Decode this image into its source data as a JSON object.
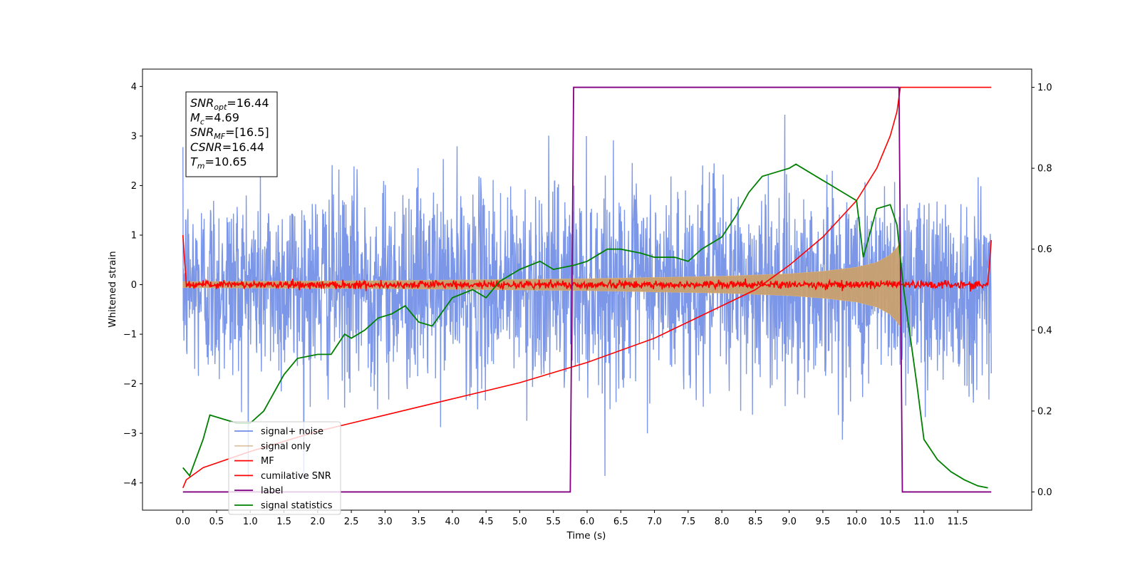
{
  "chart_data": {
    "type": "line",
    "xlabel": "Time (s)",
    "ylabel": "Whitened strain",
    "xlim": [
      -0.6,
      12.6
    ],
    "ylim": [
      -4.55,
      4.35
    ],
    "y2lim": [
      -0.045,
      1.045
    ],
    "x_ticks": [
      0.0,
      0.5,
      1.0,
      1.5,
      2.0,
      2.5,
      3.0,
      3.5,
      4.0,
      4.5,
      5.0,
      5.5,
      6.0,
      6.5,
      7.0,
      7.5,
      8.0,
      8.5,
      9.0,
      9.5,
      10.0,
      10.5,
      11.0,
      11.5
    ],
    "y_ticks": [
      -4,
      -3,
      -2,
      -1,
      0,
      1,
      2,
      3,
      4
    ],
    "y2_ticks": [
      0.0,
      0.2,
      0.4,
      0.6,
      0.8,
      1.0
    ],
    "grid": false,
    "legend_position": "lower-left",
    "colors": {
      "noise": "#6f8ce6",
      "signal": "#c8a06e",
      "mf": "#ff0000",
      "cumulative": "#ff0000",
      "label": "#800080",
      "statistics": "#008000"
    },
    "info_box": [
      {
        "sym": "SNR",
        "sub": "opt",
        "val": "=16.44"
      },
      {
        "sym": "M",
        "sub": "c",
        "val": "=4.69"
      },
      {
        "sym": "SNR",
        "sub": "MF",
        "val": "=[16.5]"
      },
      {
        "sym": "CSNR",
        "sub": "",
        "val": "=16.44"
      },
      {
        "sym": "T",
        "sub": "m",
        "val": "=10.65"
      }
    ],
    "series": [
      {
        "name": "signal+ noise",
        "axis": "left",
        "color": "#6f8ce6",
        "x_range": [
          0.0,
          12.0
        ],
        "std": 1.0,
        "max_abs": 3.9
      },
      {
        "name": "signal only",
        "axis": "left",
        "color": "#c8a06e",
        "x_range": [
          0.0,
          10.65
        ],
        "amplitude_envelope": {
          "x": [
            0.0,
            3.0,
            6.0,
            8.0,
            9.0,
            9.5,
            10.0,
            10.3,
            10.5,
            10.6,
            10.65
          ],
          "y": [
            0.06,
            0.08,
            0.12,
            0.17,
            0.22,
            0.27,
            0.35,
            0.45,
            0.6,
            0.75,
            0.85
          ]
        }
      },
      {
        "name": "MF",
        "axis": "left",
        "color": "#ff0000",
        "x_range": [
          0.0,
          12.0
        ],
        "level": 0.0,
        "noise_std": 0.04,
        "edge_spike": 1.0
      },
      {
        "name": "cumilative SNR",
        "axis": "right",
        "color": "#ff0000",
        "x": [
          0.0,
          0.05,
          0.3,
          1.0,
          2.0,
          3.0,
          4.0,
          5.0,
          6.0,
          7.0,
          8.0,
          8.5,
          9.0,
          9.5,
          10.0,
          10.3,
          10.5,
          10.6,
          10.65,
          12.0
        ],
        "y": [
          0.01,
          0.03,
          0.06,
          0.1,
          0.15,
          0.19,
          0.23,
          0.27,
          0.32,
          0.38,
          0.46,
          0.5,
          0.56,
          0.63,
          0.72,
          0.8,
          0.88,
          0.94,
          1.0,
          1.0
        ]
      },
      {
        "name": "label",
        "axis": "right",
        "color": "#800080",
        "x": [
          0.0,
          5.75,
          5.8,
          10.63,
          10.68,
          12.0
        ],
        "y": [
          0.0,
          0.0,
          1.0,
          1.0,
          0.0,
          0.0
        ]
      },
      {
        "name": "signal statistics",
        "axis": "right",
        "color": "#008000",
        "x": [
          0.0,
          0.1,
          0.3,
          0.4,
          0.6,
          0.8,
          1.0,
          1.2,
          1.5,
          1.7,
          2.0,
          2.2,
          2.4,
          2.5,
          2.7,
          2.9,
          3.1,
          3.3,
          3.5,
          3.7,
          4.0,
          4.3,
          4.5,
          4.7,
          5.0,
          5.3,
          5.5,
          5.8,
          6.0,
          6.3,
          6.5,
          6.8,
          7.0,
          7.3,
          7.5,
          7.7,
          8.0,
          8.2,
          8.4,
          8.6,
          8.8,
          9.0,
          9.1,
          9.3,
          9.5,
          9.7,
          9.9,
          10.0,
          10.1,
          10.3,
          10.5,
          10.6,
          10.7,
          10.8,
          10.9,
          11.0,
          11.2,
          11.4,
          11.6,
          11.8,
          11.95
        ],
        "y": [
          0.06,
          0.04,
          0.13,
          0.19,
          0.18,
          0.17,
          0.17,
          0.2,
          0.29,
          0.33,
          0.34,
          0.34,
          0.39,
          0.38,
          0.4,
          0.43,
          0.44,
          0.46,
          0.42,
          0.41,
          0.48,
          0.5,
          0.48,
          0.52,
          0.55,
          0.57,
          0.55,
          0.56,
          0.57,
          0.6,
          0.6,
          0.59,
          0.58,
          0.58,
          0.57,
          0.6,
          0.63,
          0.68,
          0.74,
          0.78,
          0.79,
          0.8,
          0.81,
          0.79,
          0.77,
          0.75,
          0.73,
          0.72,
          0.58,
          0.7,
          0.71,
          0.66,
          0.5,
          0.38,
          0.26,
          0.13,
          0.08,
          0.05,
          0.03,
          0.015,
          0.01
        ]
      }
    ],
    "legend": [
      "signal+ noise",
      "signal only",
      "MF",
      "cumilative SNR",
      "label",
      "signal statistics"
    ]
  }
}
